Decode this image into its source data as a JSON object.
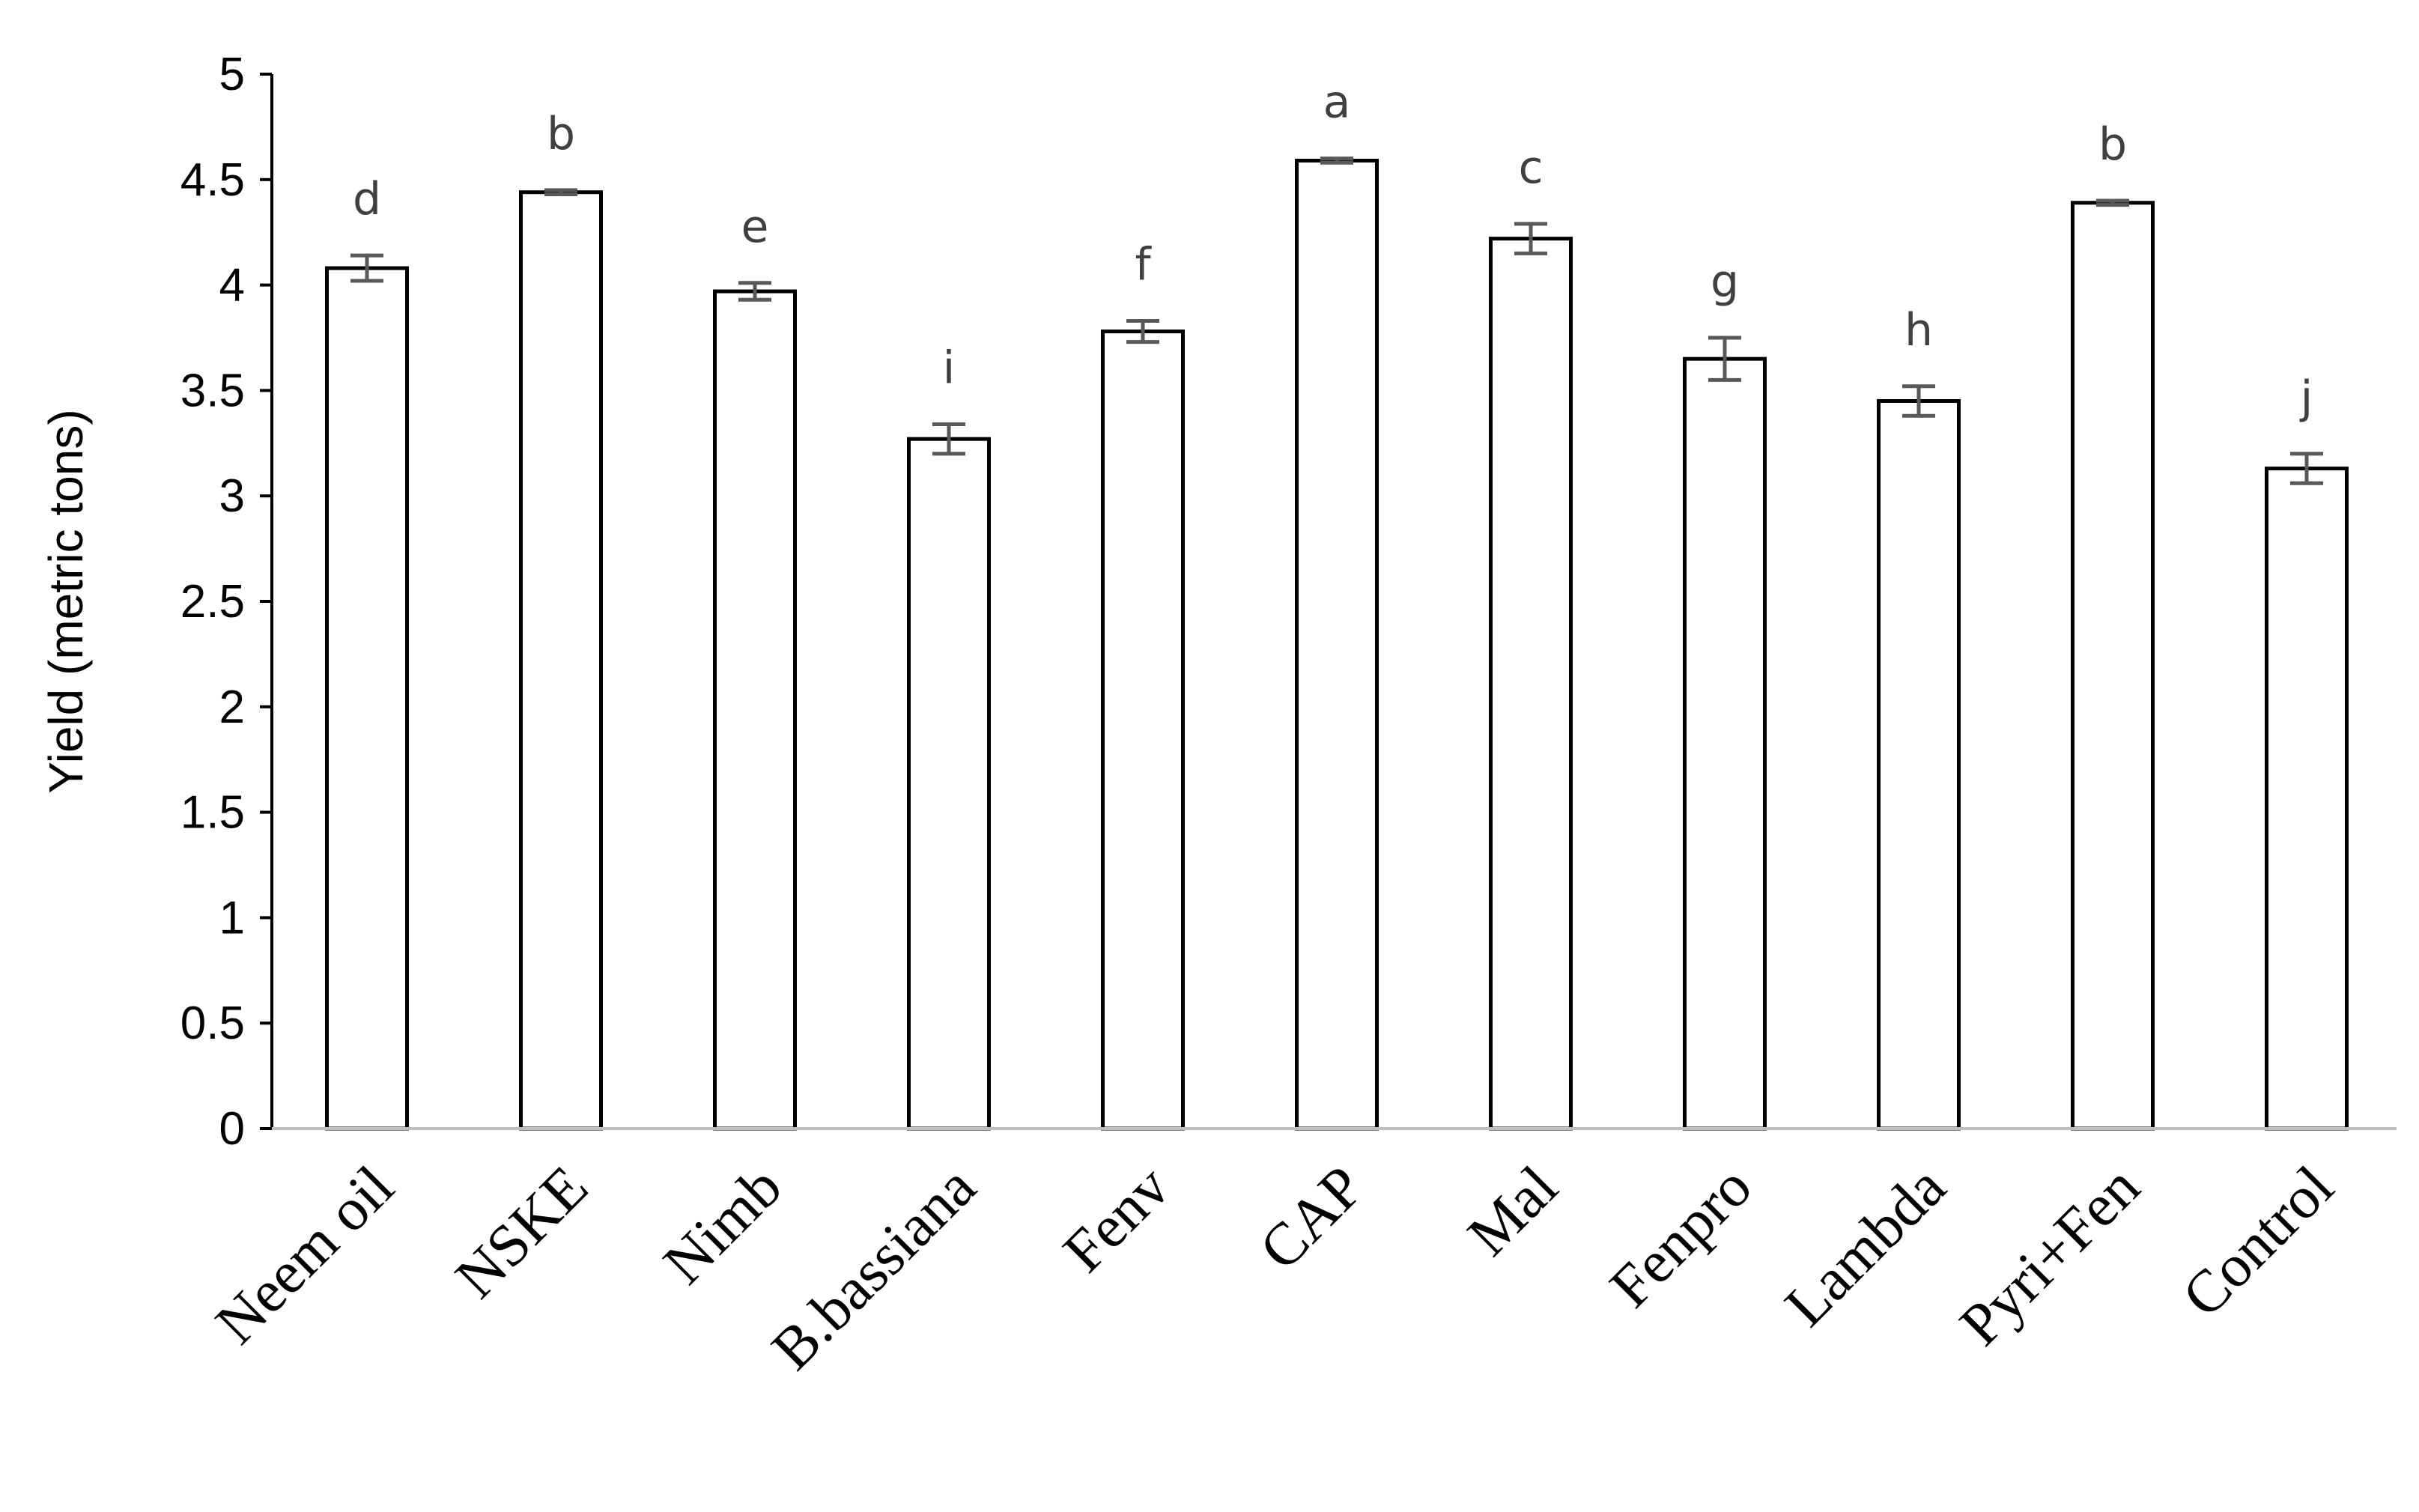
{
  "chart_data": {
    "type": "bar",
    "title": "",
    "xlabel": "",
    "ylabel": "Yield (metric tons)",
    "ylim": [
      0,
      5
    ],
    "yticks": [
      "0",
      "0.5",
      "1",
      "1.5",
      "2",
      "2.5",
      "3",
      "3.5",
      "4",
      "4.5",
      "5"
    ],
    "grid": false,
    "categories": [
      "Neem oil",
      "NSKE",
      "Nimb",
      "B.bassiana",
      "Fenv",
      "CAP",
      "Mal",
      "Fenpro",
      "Lambda",
      "Pyri+Fen",
      "Control"
    ],
    "values": [
      4.08,
      4.44,
      3.97,
      3.27,
      3.78,
      4.59,
      4.22,
      3.65,
      3.45,
      4.39,
      3.13
    ],
    "errors": [
      0.06,
      0.01,
      0.04,
      0.07,
      0.05,
      0.01,
      0.07,
      0.1,
      0.07,
      0.01,
      0.07
    ],
    "significance_letters": [
      "d",
      "b",
      "e",
      "i",
      "f",
      "a",
      "c",
      "g",
      "h",
      "b",
      "j"
    ],
    "colors": {
      "bar_fill": "#ffffff",
      "bar_stroke": "#000000",
      "error_bar": "#595959",
      "letters": "#404040"
    }
  }
}
